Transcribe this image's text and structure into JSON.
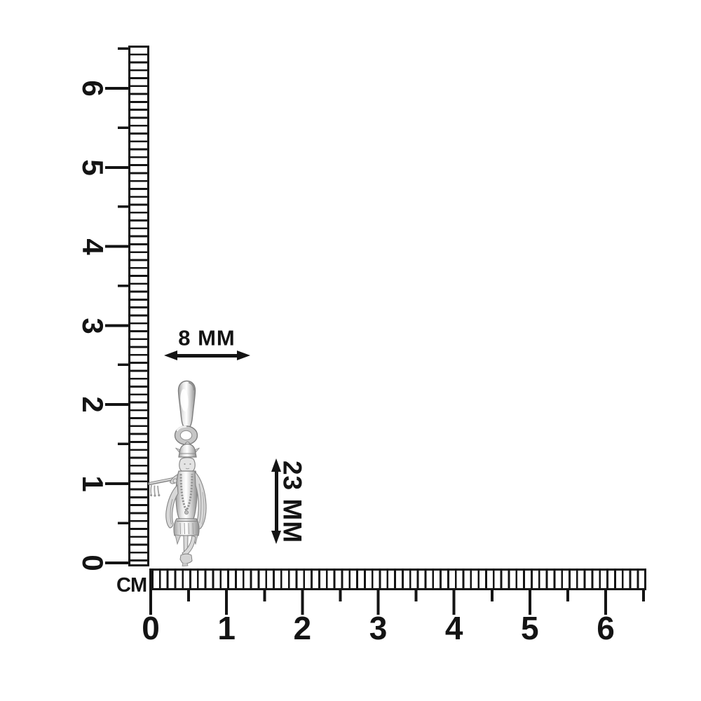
{
  "page": {
    "background": "#ffffff"
  },
  "rulers": {
    "unit_label": "CM",
    "ink_color": "#141414",
    "vertical": {
      "numbers": [
        "0",
        "1",
        "2",
        "3",
        "4",
        "5",
        "6"
      ]
    },
    "horizontal": {
      "numbers": [
        "0",
        "1",
        "2",
        "3",
        "4",
        "5",
        "6"
      ]
    }
  },
  "annotations": {
    "width_label": "8 MM",
    "height_label": "23 MM",
    "arrow_color": "#141414"
  },
  "pendant": {
    "type": "silver-krishna-flute-pendant",
    "silver_light": "#ffffff",
    "silver_mid": "#d6d6d6",
    "silver_dark": "#8f8f8f",
    "outline": "#7e7e7e"
  }
}
